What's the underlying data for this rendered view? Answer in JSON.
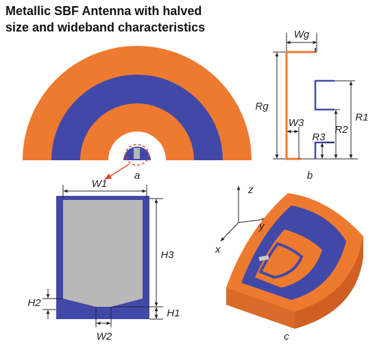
{
  "title_lines": [
    "Metallic SBF Antenna with halved",
    "size and wideband characteristics"
  ],
  "panel_labels": [
    "a",
    "b",
    "c"
  ],
  "dimension_labels": {
    "Wg": "Wg",
    "Rg": "Rg",
    "W3": "W3",
    "R3": "R3",
    "R2": "R2",
    "R1": "R1",
    "W1": "W1",
    "H3": "H3",
    "H2": "H2",
    "H1": "H1",
    "W2": "W2"
  },
  "axis_labels": {
    "z": "z",
    "y": "y",
    "x": "x"
  }
}
